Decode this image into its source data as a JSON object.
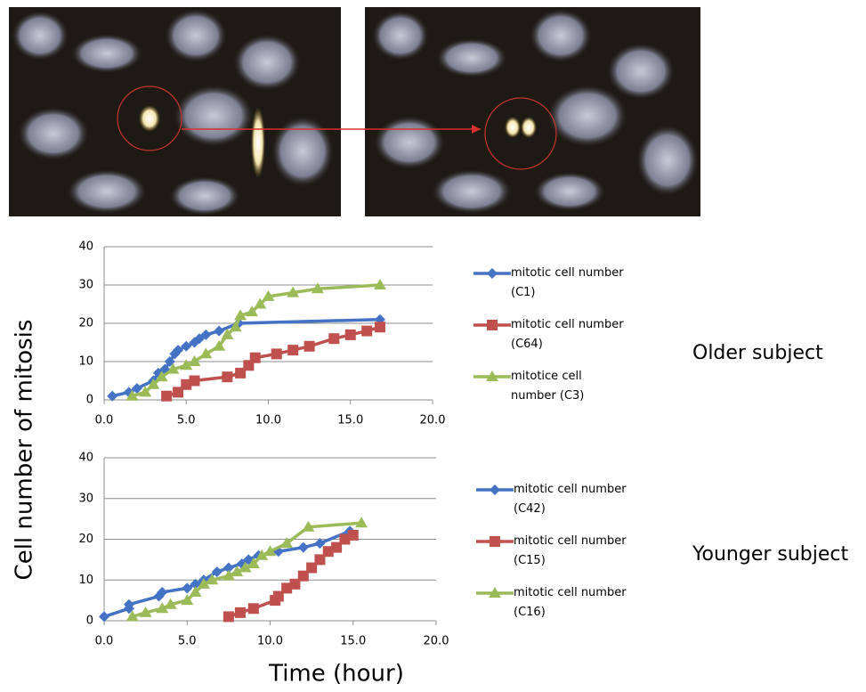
{
  "figure": {
    "ylabel": "Cell number of mitosis",
    "xlabel": "Time (hour)"
  },
  "chart_data": [
    {
      "type": "line",
      "label": "Older subject",
      "grid": true,
      "xlim": [
        0,
        20
      ],
      "xticks": [
        {
          "value": 0,
          "label": "0.0"
        },
        {
          "value": 5,
          "label": "5.0"
        },
        {
          "value": 10,
          "label": "10.0"
        },
        {
          "value": 15,
          "label": "15.0"
        },
        {
          "value": 20,
          "label": "20.0"
        }
      ],
      "ylim": [
        0,
        40
      ],
      "yticks": [
        0,
        10,
        20,
        30,
        40
      ],
      "series": [
        {
          "name": "mitotic cell number (C1)",
          "color": "#4472c4",
          "marker": "diamond",
          "x": [
            0.5,
            1.5,
            2,
            3,
            3.3,
            3.7,
            4,
            4.3,
            4.5,
            5,
            5.5,
            5.8,
            6.2,
            7,
            8.2,
            16.8
          ],
          "values": [
            1,
            2,
            3,
            5,
            7,
            8,
            10,
            12,
            13,
            14,
            15,
            16,
            17,
            18,
            20,
            21
          ]
        },
        {
          "name": "mitotic cell number (C64)",
          "color": "#c0504d",
          "marker": "square",
          "x": [
            3.8,
            4.5,
            5,
            5.5,
            7.5,
            8.3,
            8.8,
            9.2,
            10.5,
            11.5,
            12.5,
            14,
            15,
            16,
            16.8
          ],
          "values": [
            1,
            2,
            4,
            5,
            6,
            7,
            9,
            11,
            12,
            13,
            14,
            16,
            17,
            18,
            19
          ]
        },
        {
          "name": "mitotice cell number (C3)",
          "color": "#9bbb59",
          "marker": "triangle",
          "x": [
            1.7,
            2.5,
            3,
            3.5,
            4.2,
            5,
            5.5,
            6.2,
            7,
            7.5,
            8,
            8.3,
            9,
            9.5,
            10,
            11.5,
            13,
            16.8
          ],
          "values": [
            1,
            2,
            4,
            6,
            8,
            9,
            10,
            12,
            14,
            17,
            19,
            22,
            23,
            25,
            27,
            28,
            29,
            30
          ]
        }
      ]
    },
    {
      "type": "line",
      "label": "Younger subject",
      "grid": true,
      "xlim": [
        0,
        20
      ],
      "xticks": [
        {
          "value": 0,
          "label": "0.0"
        },
        {
          "value": 5,
          "label": "5.0"
        },
        {
          "value": 10,
          "label": "10.0"
        },
        {
          "value": 15,
          "label": "15.0"
        },
        {
          "value": 20,
          "label": "20.0"
        }
      ],
      "ylim": [
        0,
        40
      ],
      "yticks": [
        0,
        10,
        20,
        30,
        40
      ],
      "series": [
        {
          "name": "mitotic cell number (C42)",
          "color": "#4472c4",
          "marker": "diamond",
          "x": [
            0,
            1.5,
            1.5,
            3.3,
            3.5,
            5,
            5.5,
            6,
            6.8,
            7.5,
            8.3,
            8.7,
            9.3,
            10.5,
            12,
            13,
            14.8
          ],
          "values": [
            1,
            3,
            4,
            6,
            7,
            8,
            9,
            10,
            12,
            13,
            14,
            15,
            16,
            17,
            18,
            19,
            22
          ]
        },
        {
          "name": "mitotic cell number (C15)",
          "color": "#c0504d",
          "marker": "square",
          "x": [
            7.5,
            8.2,
            9,
            10.3,
            10.5,
            11,
            11.5,
            12,
            12.5,
            13,
            13.5,
            14,
            14.5,
            15
          ],
          "values": [
            1,
            2,
            3,
            5,
            6,
            8,
            9,
            11,
            13,
            15,
            17,
            18,
            20,
            21
          ]
        },
        {
          "name": "mitotic cell number (C16)",
          "color": "#9bbb59",
          "marker": "triangle",
          "x": [
            1.7,
            2.5,
            3.5,
            4,
            5,
            5.5,
            6,
            6.5,
            7.5,
            8,
            8.5,
            9,
            9.5,
            10,
            11,
            12.3,
            15.5
          ],
          "values": [
            1,
            2,
            3,
            4,
            5,
            7,
            9,
            10,
            11,
            12,
            13,
            14,
            16,
            17,
            19,
            23,
            24
          ]
        }
      ]
    }
  ]
}
